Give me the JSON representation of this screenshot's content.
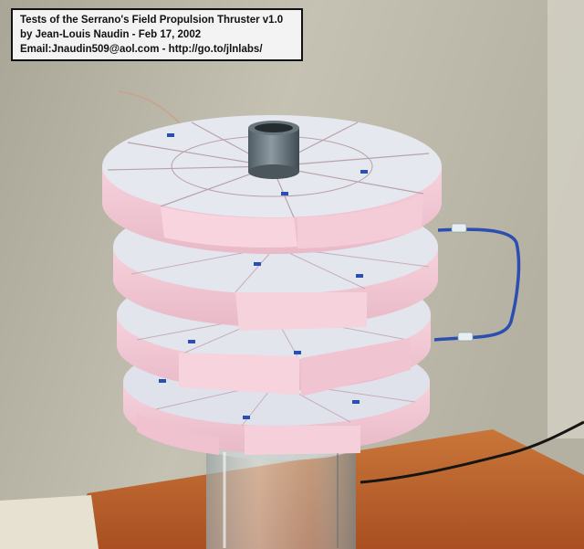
{
  "caption": {
    "line1": "Tests of the Serrano's Field Propulsion Thruster v1.0",
    "line2": "by Jean-Louis Naudin - Feb 17, 2002",
    "line3": "Email:Jnaudin509@aol.com - http://go.to/jlnlabs/"
  },
  "colors": {
    "wall": "#bcb8aa",
    "foam": "#f3c9d6",
    "foil": "#dfe2ea",
    "table": "#c4672e",
    "wire": "#2a4fb0"
  },
  "icons": [
    "thruster-device",
    "glass-jar",
    "tube-connector",
    "blue-wire"
  ]
}
